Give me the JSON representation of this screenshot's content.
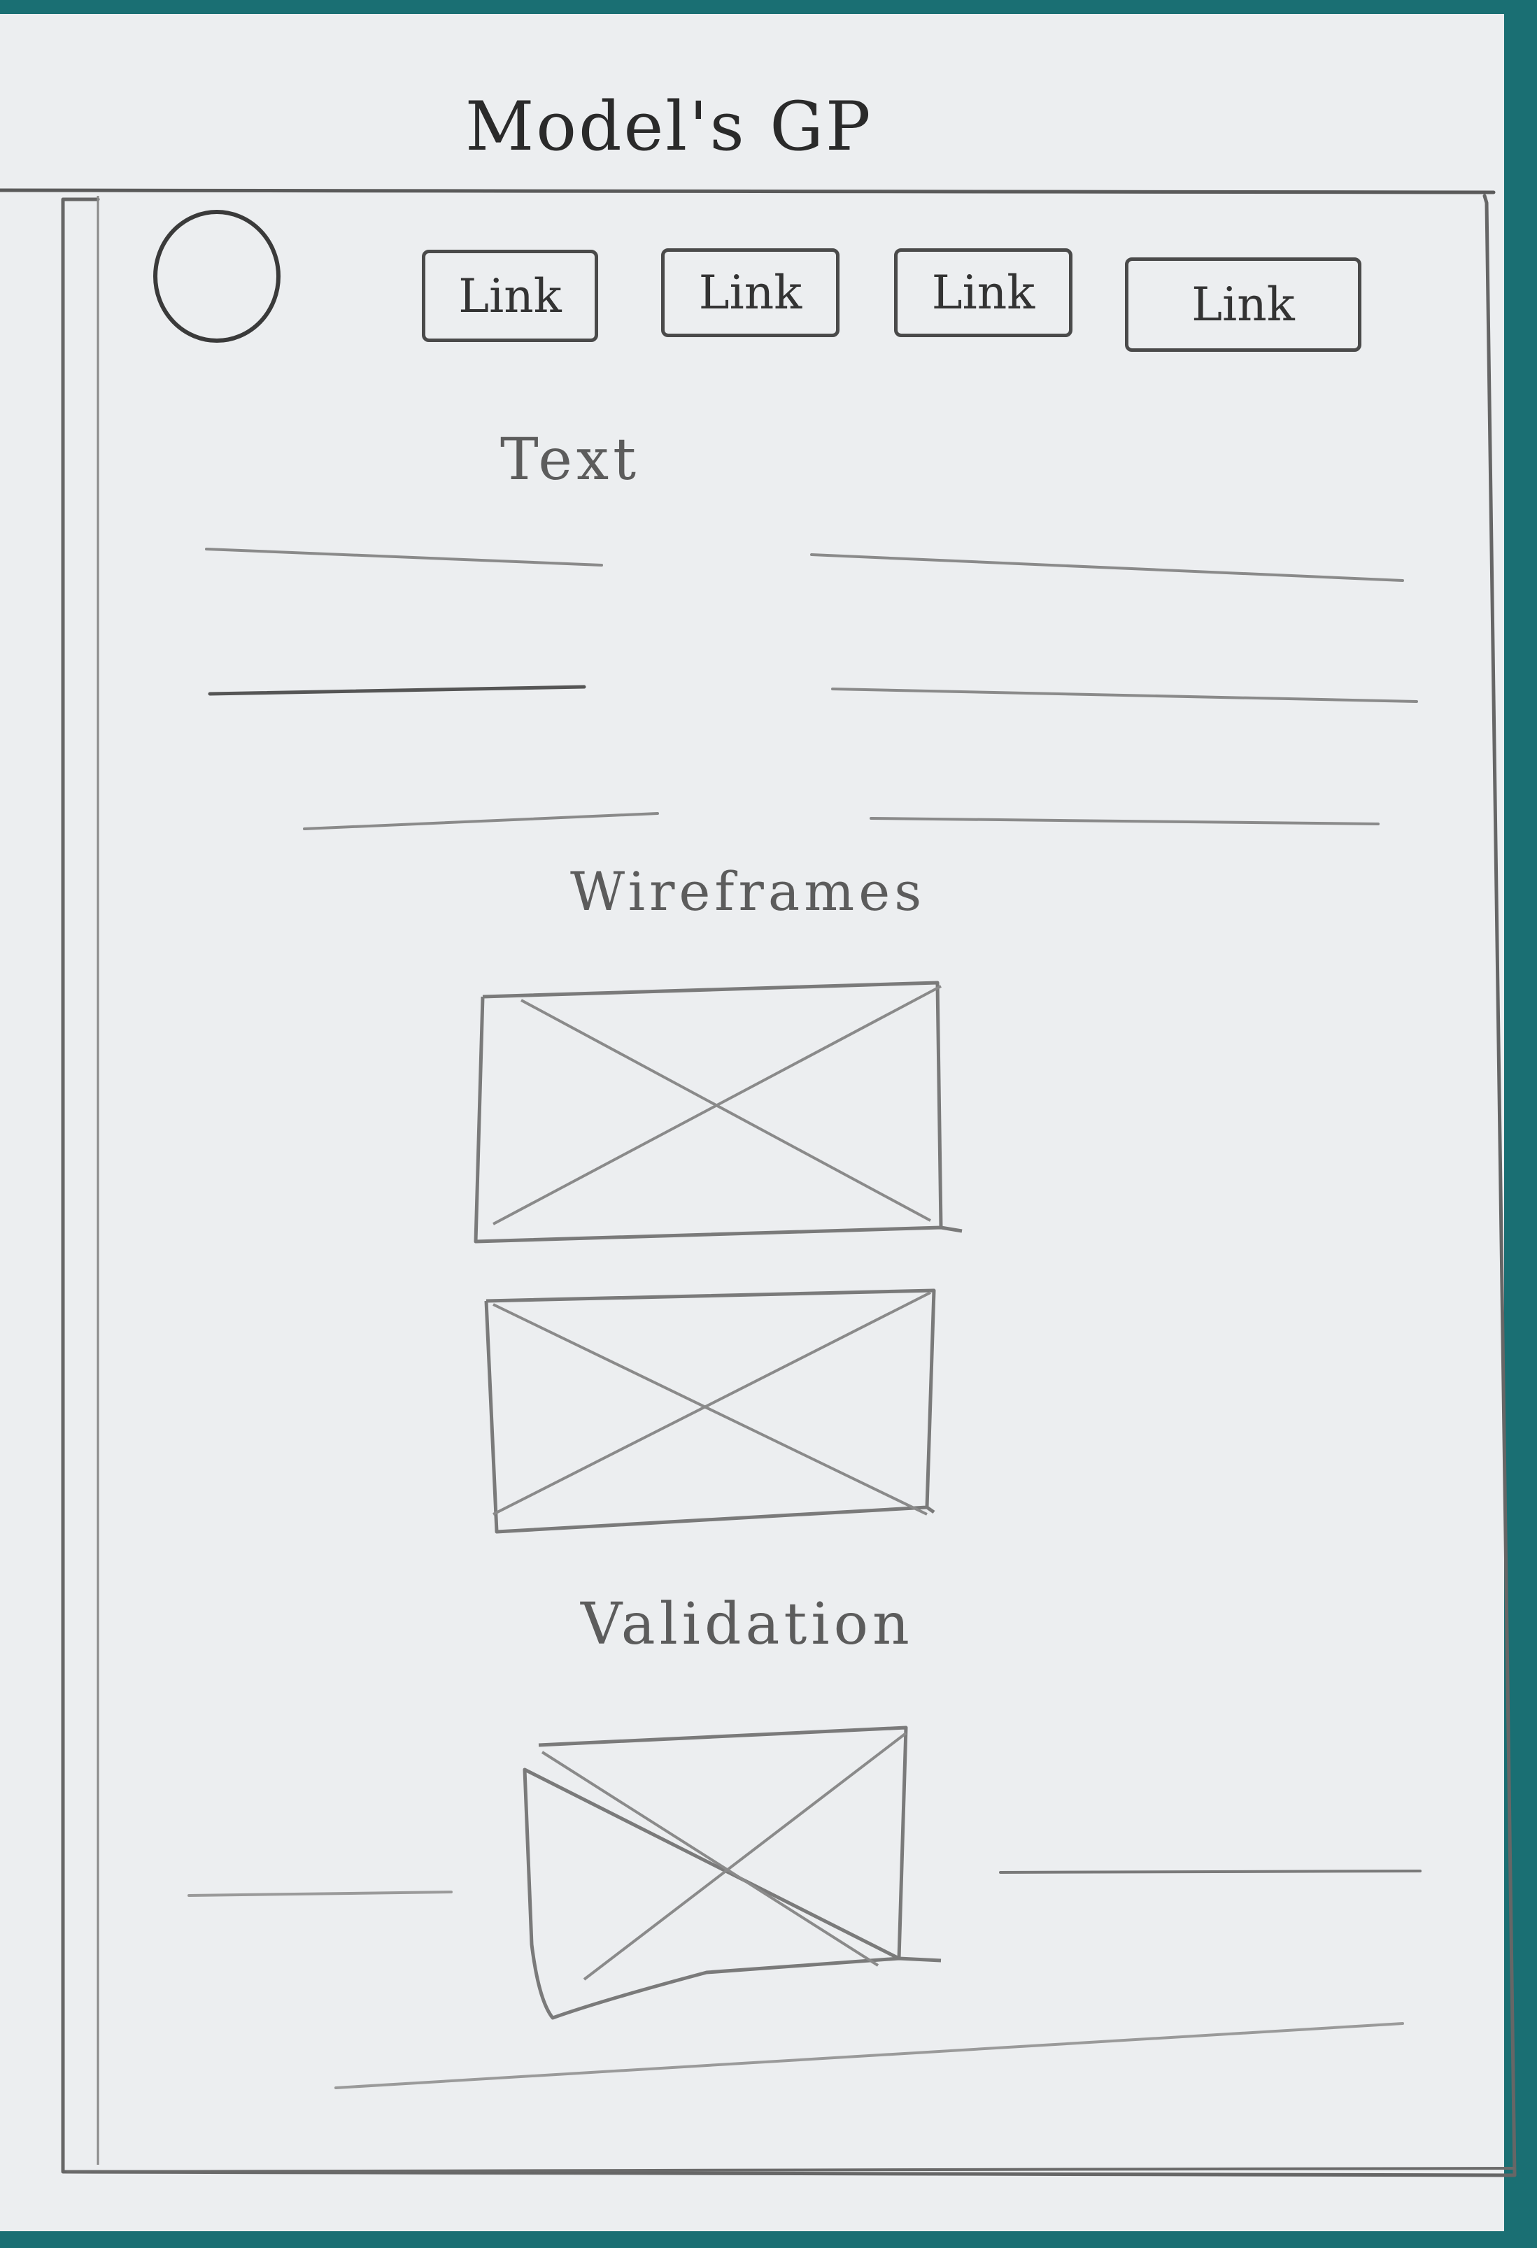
{
  "page": {
    "title": "Model's GP"
  },
  "header": {
    "logo_icon": "circle-logo-icon",
    "links": [
      {
        "label": "Link"
      },
      {
        "label": "Link"
      },
      {
        "label": "Link"
      },
      {
        "label": "Link"
      }
    ]
  },
  "sections": {
    "text": {
      "heading": "Text"
    },
    "wireframes": {
      "heading": "Wireframes"
    },
    "validation": {
      "heading": "Validation"
    }
  },
  "placeholders": {
    "image_icon": "image-placeholder-icon",
    "text_line_icon": "text-line-placeholder"
  },
  "colors": {
    "background": "#1a6f73",
    "paper": "#eceef0",
    "pencil_dark": "#3a3a3a",
    "pencil_light": "#8a8a8a"
  }
}
